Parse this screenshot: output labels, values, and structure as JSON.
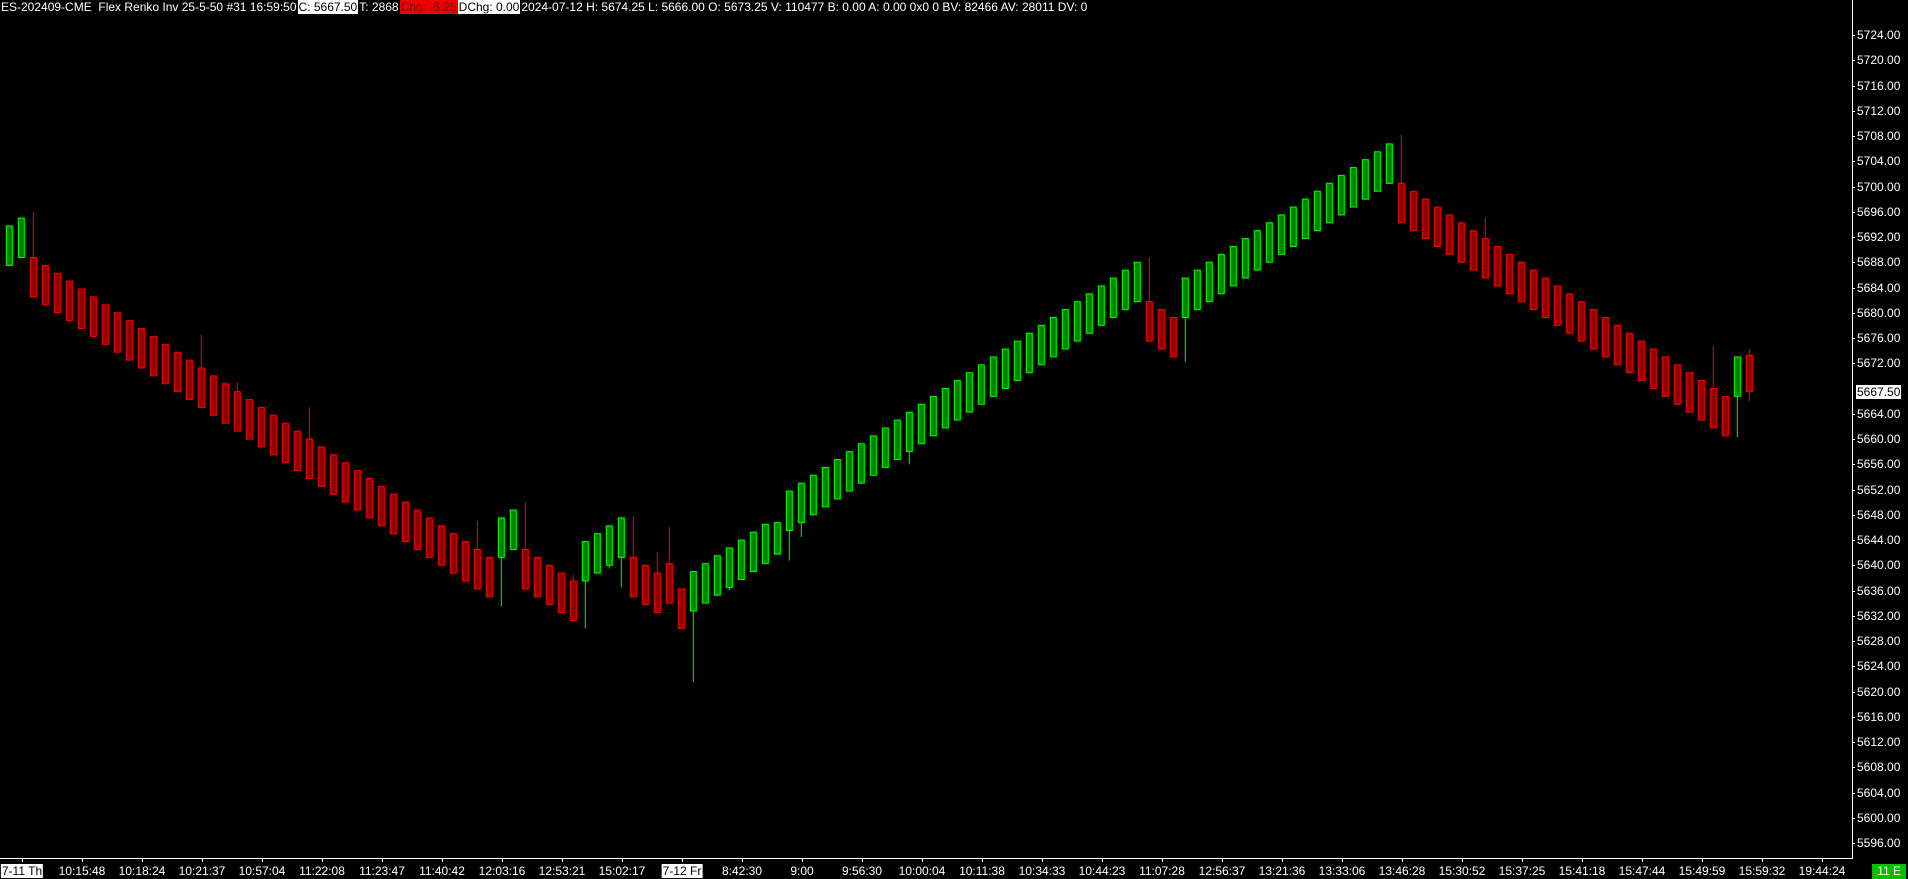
{
  "header": {
    "symbol_info": "ES-202409-CME  Flex Renko Inv 25-5-50 #31 16:59:50",
    "close": "C: 5667.50",
    "trades": "T: 2868",
    "change": "Chg: -5.25",
    "daily_change": "DChg: 0.00",
    "stats": "2024-07-12 H: 5674.25 L: 5666.00 O: 5673.25 V: 110477 B: 0.00 A: 0.00 0x0 0 BV: 82466 AV: 28011 DV: 0"
  },
  "status_badge": "11 E",
  "colors": {
    "background": "#000000",
    "up_fill": "#008000",
    "up_outline": "#00ff00",
    "down_fill": "#8b0000",
    "down_outline": "#ff0000",
    "change_highlight": "#f00000",
    "status_badge": "#00c000"
  },
  "chart_data": {
    "type": "candlestick",
    "subtype": "renko",
    "bar_format": [
      "open",
      "high",
      "low",
      "close"
    ],
    "ylim": [
      5592,
      5728
    ],
    "y_ticks": [
      "5724.00",
      "5720.00",
      "5716.00",
      "5712.00",
      "5708.00",
      "5704.00",
      "5700.00",
      "5696.00",
      "5692.00",
      "5688.00",
      "5684.00",
      "5680.00",
      "5676.00",
      "5672.00",
      "5664.00",
      "5660.00",
      "5656.00",
      "5652.00",
      "5648.00",
      "5644.00",
      "5640.00",
      "5636.00",
      "5632.00",
      "5628.00",
      "5624.00",
      "5620.00",
      "5616.00",
      "5612.00",
      "5608.00",
      "5604.00",
      "5600.00",
      "5596.00"
    ],
    "current_price": 5667.5,
    "current_price_label": "5667.50",
    "x_labels": [
      {
        "text": "7-11 Th",
        "date": true
      },
      {
        "text": "10:15:48"
      },
      {
        "text": "10:18:24"
      },
      {
        "text": "10:21:37"
      },
      {
        "text": "10:57:04"
      },
      {
        "text": "11:22:08"
      },
      {
        "text": "11:23:47"
      },
      {
        "text": "11:40:42"
      },
      {
        "text": "12:03:16"
      },
      {
        "text": "12:53:21"
      },
      {
        "text": "15:02:17"
      },
      {
        "text": "7-12 Fr",
        "date": true
      },
      {
        "text": "8:42:30"
      },
      {
        "text": "9:00"
      },
      {
        "text": "9:56:30"
      },
      {
        "text": "10:00:04"
      },
      {
        "text": "10:11:38"
      },
      {
        "text": "10:34:33"
      },
      {
        "text": "10:44:23"
      },
      {
        "text": "11:07:28"
      },
      {
        "text": "12:56:37"
      },
      {
        "text": "13:21:36"
      },
      {
        "text": "13:33:06"
      },
      {
        "text": "13:46:28"
      },
      {
        "text": "15:30:52"
      },
      {
        "text": "15:37:25"
      },
      {
        "text": "15:41:18"
      },
      {
        "text": "15:47:44"
      },
      {
        "text": "15:49:59"
      },
      {
        "text": "15:59:32"
      },
      {
        "text": "19:44:24"
      }
    ],
    "bars": [
      [
        5687.5,
        5693.75,
        5687.5,
        5693.75
      ],
      [
        5688.75,
        5695,
        5688.75,
        5695
      ],
      [
        5688.75,
        5696,
        5682.5,
        5682.5
      ],
      [
        5687.5,
        5687.5,
        5681.25,
        5681.25
      ],
      [
        5686.25,
        5686.25,
        5680,
        5680
      ],
      [
        5685,
        5685,
        5678.75,
        5678.75
      ],
      [
        5683.75,
        5683.75,
        5677.5,
        5677.5
      ],
      [
        5682.5,
        5682.5,
        5676.25,
        5676.25
      ],
      [
        5681.25,
        5681.25,
        5675,
        5675
      ],
      [
        5680,
        5680,
        5673.75,
        5673.75
      ],
      [
        5678.75,
        5678.75,
        5672.5,
        5672.5
      ],
      [
        5677.5,
        5677.5,
        5671.25,
        5671.25
      ],
      [
        5676.25,
        5676.25,
        5670,
        5670
      ],
      [
        5675,
        5675,
        5668.75,
        5668.75
      ],
      [
        5673.75,
        5673.75,
        5667.5,
        5667.5
      ],
      [
        5672.5,
        5672.5,
        5666.25,
        5666.25
      ],
      [
        5671.25,
        5676.5,
        5665,
        5665
      ],
      [
        5670,
        5670,
        5663.75,
        5663.75
      ],
      [
        5668.75,
        5668.75,
        5662.5,
        5662.5
      ],
      [
        5667.5,
        5669,
        5661.25,
        5661.25
      ],
      [
        5666.25,
        5666.25,
        5660,
        5660
      ],
      [
        5665,
        5665,
        5658.75,
        5658.75
      ],
      [
        5663.75,
        5663.75,
        5657.5,
        5657.5
      ],
      [
        5662.5,
        5662.5,
        5656.25,
        5656.25
      ],
      [
        5661.25,
        5661.25,
        5655,
        5655
      ],
      [
        5660,
        5665,
        5653.75,
        5653.75
      ],
      [
        5658.75,
        5658.75,
        5652.5,
        5652.5
      ],
      [
        5657.5,
        5657.5,
        5651.25,
        5651.25
      ],
      [
        5656.25,
        5656.25,
        5650,
        5650
      ],
      [
        5655,
        5655,
        5648.75,
        5648.75
      ],
      [
        5653.75,
        5653.75,
        5647.5,
        5647.5
      ],
      [
        5652.5,
        5652.5,
        5646.25,
        5646.25
      ],
      [
        5651.25,
        5651.25,
        5645,
        5645
      ],
      [
        5650,
        5650,
        5643.75,
        5643.75
      ],
      [
        5648.75,
        5648.75,
        5642.5,
        5642.5
      ],
      [
        5647.5,
        5647.5,
        5641.25,
        5641.25
      ],
      [
        5646.25,
        5646.25,
        5640,
        5640
      ],
      [
        5645,
        5645,
        5638.75,
        5638.75
      ],
      [
        5643.75,
        5643.75,
        5637.5,
        5637.5
      ],
      [
        5642.5,
        5647,
        5636.25,
        5636.25
      ],
      [
        5641.25,
        5641.25,
        5635,
        5635
      ],
      [
        5641.25,
        5647.5,
        5633.5,
        5647.5
      ],
      [
        5642.5,
        5648.75,
        5642.5,
        5648.75
      ],
      [
        5642.5,
        5650,
        5636.25,
        5636.25
      ],
      [
        5641.25,
        5641.25,
        5635,
        5635
      ],
      [
        5640,
        5640,
        5633.75,
        5633.75
      ],
      [
        5638.75,
        5638.75,
        5632.5,
        5632.5
      ],
      [
        5637.5,
        5638.5,
        5631.25,
        5631.25
      ],
      [
        5637.5,
        5643.75,
        5630,
        5643.75
      ],
      [
        5638.75,
        5645,
        5638.75,
        5645
      ],
      [
        5640,
        5646.25,
        5639.5,
        5646.25
      ],
      [
        5641.25,
        5647.5,
        5636.5,
        5647.5
      ],
      [
        5641.25,
        5647.75,
        5635,
        5635
      ],
      [
        5640,
        5640,
        5633.75,
        5633.75
      ],
      [
        5638.75,
        5642,
        5632.5,
        5632.5
      ],
      [
        5640.25,
        5646,
        5634,
        5634
      ],
      [
        5636.25,
        5636.25,
        5630,
        5630
      ],
      [
        5632.75,
        5639,
        5621.5,
        5639
      ],
      [
        5634,
        5640.25,
        5634,
        5640.25
      ],
      [
        5635.25,
        5641.5,
        5635.25,
        5641.5
      ],
      [
        5636.5,
        5642.75,
        5636,
        5642.75
      ],
      [
        5637.75,
        5644,
        5637.75,
        5644
      ],
      [
        5639,
        5645.25,
        5639,
        5645.25
      ],
      [
        5640.25,
        5646.5,
        5640.25,
        5646.5
      ],
      [
        5641.75,
        5646.75,
        5641.75,
        5646.75
      ],
      [
        5645.5,
        5651.75,
        5640.75,
        5651.75
      ],
      [
        5646.75,
        5653,
        5644.5,
        5653
      ],
      [
        5648,
        5654.25,
        5648,
        5654.25
      ],
      [
        5649.25,
        5655.5,
        5649.25,
        5655.5
      ],
      [
        5650.5,
        5656.75,
        5650.5,
        5656.75
      ],
      [
        5651.75,
        5658,
        5651.75,
        5658
      ],
      [
        5653,
        5659.25,
        5653,
        5659.25
      ],
      [
        5654.25,
        5660.5,
        5654.25,
        5660.5
      ],
      [
        5655.5,
        5661.75,
        5655.5,
        5661.75
      ],
      [
        5656.75,
        5663,
        5656.75,
        5663
      ],
      [
        5658,
        5664.25,
        5656,
        5664.25
      ],
      [
        5659.25,
        5665.5,
        5659.25,
        5665.5
      ],
      [
        5660.5,
        5666.75,
        5660.5,
        5666.75
      ],
      [
        5661.75,
        5668,
        5661.75,
        5668
      ],
      [
        5663,
        5669.25,
        5663,
        5669.25
      ],
      [
        5664.25,
        5670.5,
        5664.25,
        5670.5
      ],
      [
        5665.5,
        5671.75,
        5665.5,
        5671.75
      ],
      [
        5666.75,
        5673,
        5666.75,
        5673
      ],
      [
        5668,
        5674.25,
        5668,
        5674.25
      ],
      [
        5669.25,
        5675.5,
        5669.25,
        5675.5
      ],
      [
        5670.5,
        5676.75,
        5670.5,
        5676.75
      ],
      [
        5671.75,
        5678,
        5671.75,
        5678
      ],
      [
        5673,
        5679.25,
        5673,
        5679.25
      ],
      [
        5674.25,
        5680.5,
        5674.25,
        5680.5
      ],
      [
        5675.5,
        5681.75,
        5675.5,
        5681.75
      ],
      [
        5676.75,
        5683,
        5676.75,
        5683
      ],
      [
        5678,
        5684.25,
        5678,
        5684.25
      ],
      [
        5679.25,
        5685.5,
        5679.25,
        5685.5
      ],
      [
        5680.5,
        5686.75,
        5680.5,
        5686.75
      ],
      [
        5681.75,
        5688,
        5681.75,
        5688
      ],
      [
        5681.75,
        5688.75,
        5675.5,
        5675.5
      ],
      [
        5680.5,
        5680.5,
        5674.25,
        5674.25
      ],
      [
        5679.25,
        5679.25,
        5673,
        5673
      ],
      [
        5679.25,
        5685.5,
        5672.25,
        5685.5
      ],
      [
        5680.5,
        5686.75,
        5680.5,
        5686.75
      ],
      [
        5681.75,
        5688,
        5681.75,
        5688
      ],
      [
        5683,
        5689.25,
        5683,
        5689.25
      ],
      [
        5684.25,
        5690.5,
        5684.25,
        5690.5
      ],
      [
        5685.5,
        5691.75,
        5685.5,
        5691.75
      ],
      [
        5686.75,
        5693,
        5686.75,
        5693
      ],
      [
        5688,
        5694.25,
        5688,
        5694.25
      ],
      [
        5689.25,
        5695.5,
        5689.25,
        5695.5
      ],
      [
        5690.5,
        5696.75,
        5690.5,
        5696.75
      ],
      [
        5691.75,
        5698,
        5691.75,
        5698
      ],
      [
        5693,
        5699.25,
        5693,
        5699.25
      ],
      [
        5694.25,
        5700.5,
        5694.25,
        5700.5
      ],
      [
        5695.5,
        5701.75,
        5695.5,
        5701.75
      ],
      [
        5696.75,
        5703,
        5696.75,
        5703
      ],
      [
        5698,
        5704.25,
        5698,
        5704.25
      ],
      [
        5699.25,
        5705.5,
        5699.25,
        5705.5
      ],
      [
        5700.5,
        5706.75,
        5700.5,
        5706.75
      ],
      [
        5700.5,
        5708.25,
        5694.25,
        5694.25
      ],
      [
        5699.25,
        5699.25,
        5693,
        5693
      ],
      [
        5698,
        5698,
        5691.75,
        5691.75
      ],
      [
        5696.75,
        5696.75,
        5690.5,
        5690.5
      ],
      [
        5695.5,
        5695.5,
        5689.25,
        5689.25
      ],
      [
        5694.25,
        5694.25,
        5688,
        5688
      ],
      [
        5693,
        5693,
        5686.75,
        5686.75
      ],
      [
        5691.75,
        5695,
        5685.5,
        5685.5
      ],
      [
        5690.5,
        5690.5,
        5684.25,
        5684.25
      ],
      [
        5689.25,
        5689.25,
        5683,
        5683
      ],
      [
        5688,
        5688,
        5681.75,
        5681.75
      ],
      [
        5686.75,
        5686.75,
        5680.5,
        5680.5
      ],
      [
        5685.5,
        5685.5,
        5679.25,
        5679.25
      ],
      [
        5684.25,
        5684.25,
        5678,
        5678
      ],
      [
        5683,
        5683,
        5676.75,
        5676.75
      ],
      [
        5681.75,
        5681.75,
        5675.5,
        5675.5
      ],
      [
        5680.5,
        5680.5,
        5674.25,
        5674.25
      ],
      [
        5679.25,
        5679.25,
        5673,
        5673
      ],
      [
        5678,
        5678,
        5671.75,
        5671.75
      ],
      [
        5676.75,
        5676.75,
        5670.5,
        5670.5
      ],
      [
        5675.5,
        5675.5,
        5669.25,
        5669.25
      ],
      [
        5674.25,
        5674.25,
        5668,
        5668
      ],
      [
        5673,
        5673,
        5666.75,
        5666.75
      ],
      [
        5671.75,
        5671.75,
        5665.5,
        5665.5
      ],
      [
        5670.5,
        5670.5,
        5664.25,
        5664.25
      ],
      [
        5669.25,
        5669.25,
        5663,
        5663
      ],
      [
        5668,
        5674.75,
        5661.75,
        5661.75
      ],
      [
        5666.75,
        5666.75,
        5660.5,
        5660.5
      ],
      [
        5666.75,
        5673,
        5660.25,
        5673
      ],
      [
        5673.25,
        5674.25,
        5666,
        5667.5
      ]
    ]
  }
}
